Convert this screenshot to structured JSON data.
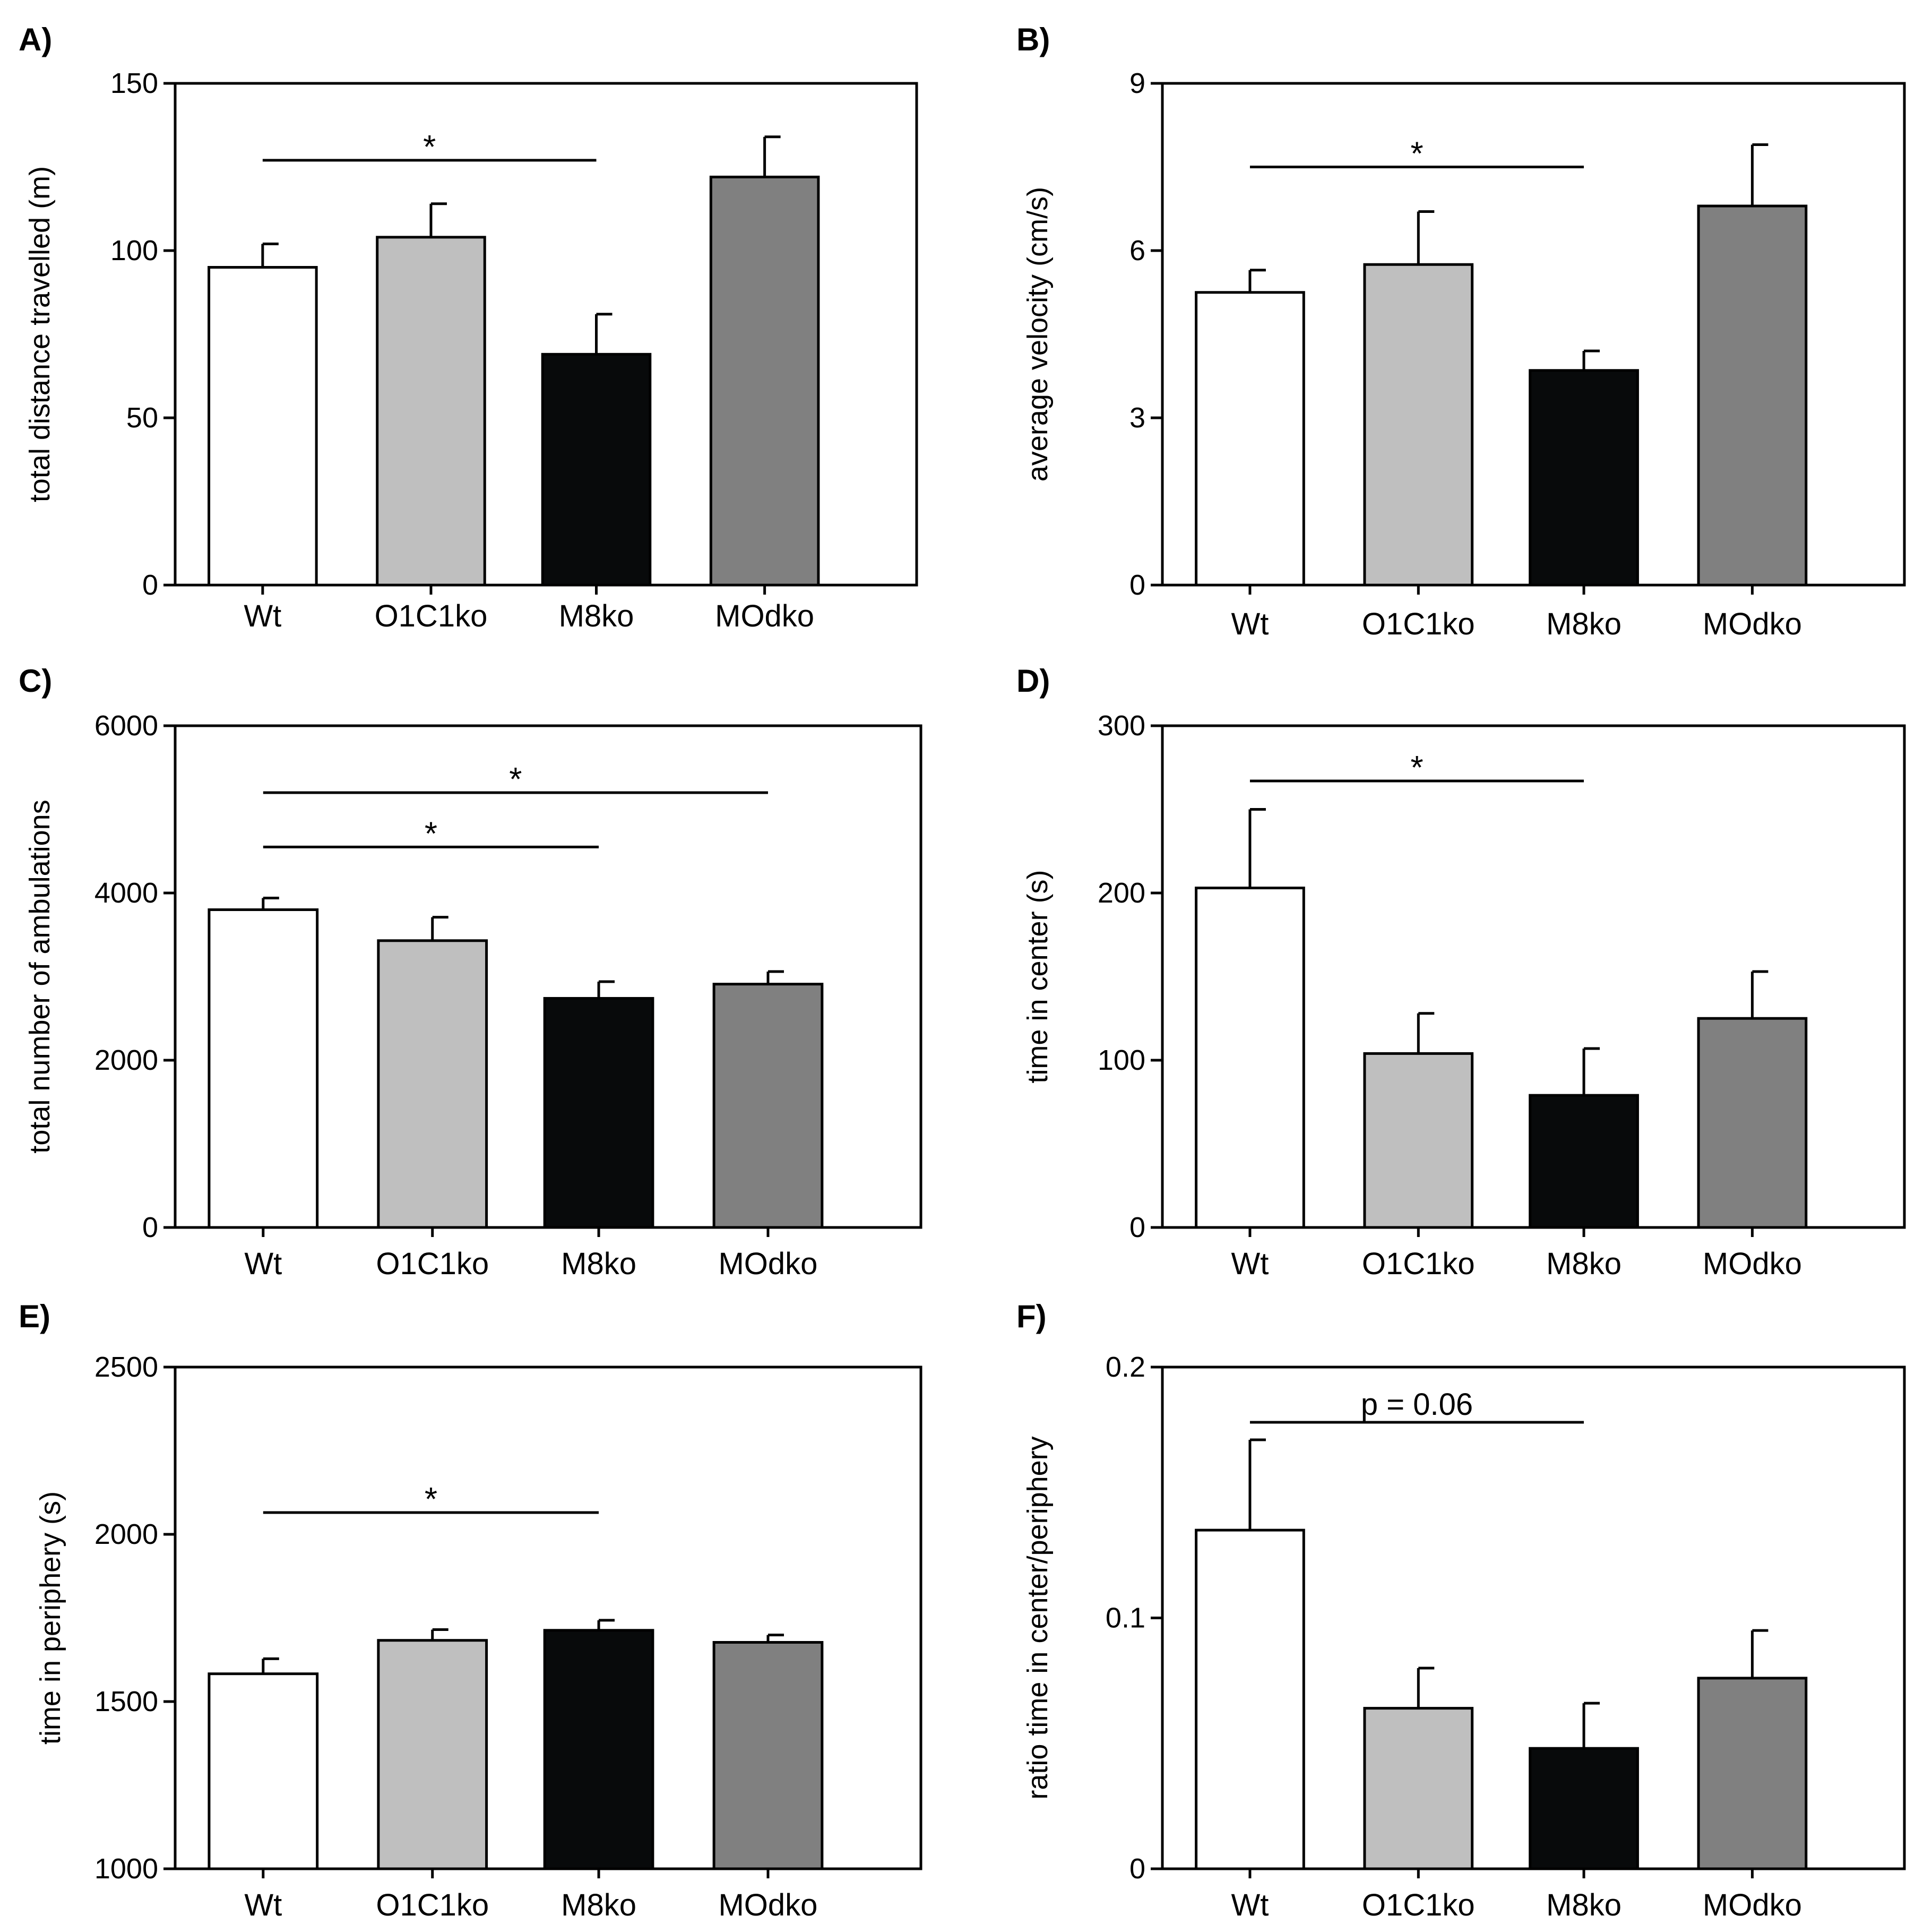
{
  "figure": {
    "categories": [
      "Wt",
      "O1C1ko",
      "M8ko",
      "MOdko"
    ],
    "colors": {
      "Wt": "#ffffff",
      "O1C1ko": "#bfbfbf",
      "M8ko": "#080a0b",
      "MOdko": "#808080"
    }
  },
  "chart_data": [
    {
      "panel": "A)",
      "type": "bar",
      "ylabel": "total distance travelled (m)",
      "categories": [
        "Wt",
        "O1C1ko",
        "M8ko",
        "MOdko"
      ],
      "values": [
        95,
        104,
        69,
        122
      ],
      "errors": [
        7,
        10,
        12,
        12
      ],
      "ylim": [
        0,
        150
      ],
      "yticks": [
        0,
        50,
        100,
        150
      ],
      "significance": [
        {
          "from": 0,
          "to": 2,
          "label": "*",
          "y": 127
        }
      ]
    },
    {
      "panel": "B)",
      "type": "bar",
      "ylabel": "average velocity (cm/s)",
      "categories": [
        "Wt",
        "O1C1ko",
        "M8ko",
        "MOdko"
      ],
      "values": [
        5.25,
        5.75,
        3.85,
        6.8
      ],
      "errors": [
        0.4,
        0.95,
        0.35,
        1.1
      ],
      "ylim": [
        0,
        9
      ],
      "yticks": [
        0,
        3,
        6,
        9
      ],
      "significance": [
        {
          "from": 0,
          "to": 2,
          "label": "*",
          "y": 7.5
        }
      ]
    },
    {
      "panel": "C)",
      "type": "bar",
      "ylabel": "total number of ambulations",
      "categories": [
        "Wt",
        "O1C1ko",
        "M8ko",
        "MOdko"
      ],
      "values": [
        3800,
        3430,
        2740,
        2910
      ],
      "errors": [
        140,
        280,
        200,
        150
      ],
      "ylim": [
        0,
        6000
      ],
      "yticks": [
        0,
        2000,
        4000,
        6000
      ],
      "significance": [
        {
          "from": 0,
          "to": 3,
          "label": "*",
          "y": 5200
        },
        {
          "from": 0,
          "to": 2,
          "label": "*",
          "y": 4550
        }
      ]
    },
    {
      "panel": "D)",
      "type": "bar",
      "ylabel": "time in center (s)",
      "categories": [
        "Wt",
        "O1C1ko",
        "M8ko",
        "MOdko"
      ],
      "values": [
        203,
        104,
        79,
        125
      ],
      "errors": [
        47,
        24,
        28,
        28
      ],
      "ylim": [
        0,
        300
      ],
      "yticks": [
        0,
        100,
        200,
        300
      ],
      "significance": [
        {
          "from": 0,
          "to": 2,
          "label": "*",
          "y": 267
        }
      ]
    },
    {
      "panel": "E)",
      "type": "bar",
      "ylabel": "time in periphery (s)",
      "categories": [
        "Wt",
        "O1C1ko",
        "M8ko",
        "MOdko"
      ],
      "values": [
        1583,
        1683,
        1713,
        1677
      ],
      "errors": [
        45,
        32,
        30,
        22
      ],
      "ylim": [
        1000,
        2500
      ],
      "yticks": [
        1000,
        1500,
        2000,
        2500
      ],
      "significance": [
        {
          "from": 0,
          "to": 2,
          "label": "*",
          "y": 2065
        }
      ]
    },
    {
      "panel": "F)",
      "type": "bar",
      "ylabel": "ratio  time in center/periphery",
      "categories": [
        "Wt",
        "O1C1ko",
        "M8ko",
        "MOdko"
      ],
      "values": [
        0.135,
        0.064,
        0.048,
        0.076
      ],
      "errors": [
        0.036,
        0.016,
        0.018,
        0.019
      ],
      "ylim": [
        0,
        0.2
      ],
      "yticks": [
        "0",
        "0.1",
        "0.2"
      ],
      "significance": [
        {
          "from": 0,
          "to": 2,
          "label": "p = 0.06",
          "y": 0.178
        }
      ]
    }
  ]
}
